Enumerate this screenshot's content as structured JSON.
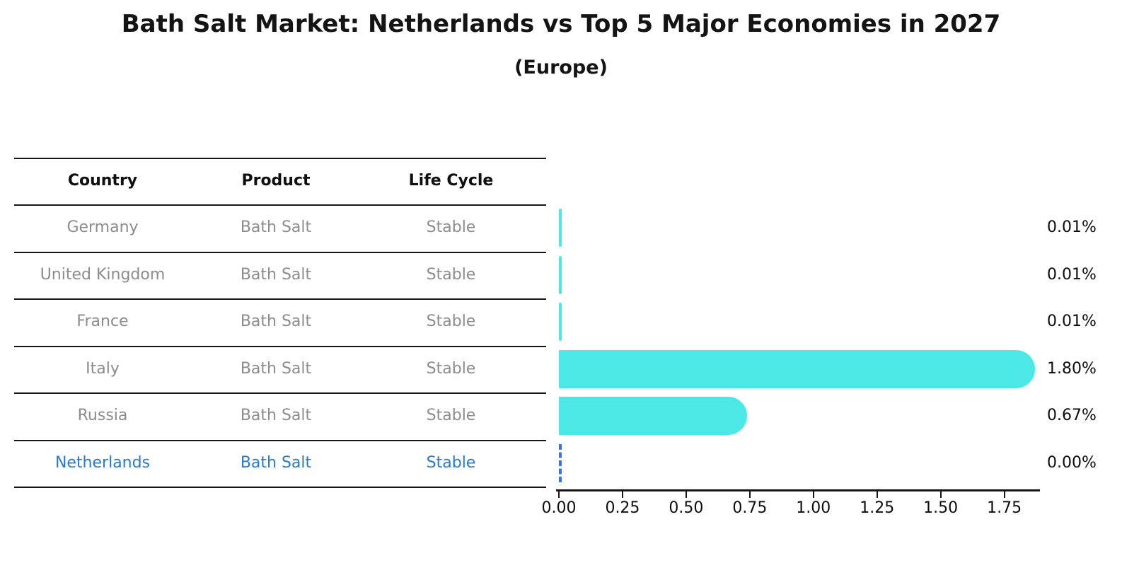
{
  "title": "Bath Salt Market: Netherlands vs Top 5 Major Economies in 2027",
  "subtitle": "(Europe)",
  "colors": {
    "bar": "#4BE8E6",
    "highlight_bar": "#3B74D9",
    "highlight_text": "#2979CE",
    "row_text": "#8c8c8c",
    "header_text": "#0f0f0f",
    "axis": "#161616"
  },
  "table": {
    "headers": [
      "Country",
      "Product",
      "Life Cycle"
    ],
    "rows": [
      {
        "country": "Germany",
        "product": "Bath Salt",
        "life_cycle": "Stable",
        "highlight": false
      },
      {
        "country": "United Kingdom",
        "product": "Bath Salt",
        "life_cycle": "Stable",
        "highlight": false
      },
      {
        "country": "France",
        "product": "Bath Salt",
        "life_cycle": "Stable",
        "highlight": false
      },
      {
        "country": "Italy",
        "product": "Bath Salt",
        "life_cycle": "Stable",
        "highlight": false
      },
      {
        "country": "Russia",
        "product": "Bath Salt",
        "life_cycle": "Stable",
        "highlight": false
      },
      {
        "country": "Netherlands",
        "product": "Bath Salt",
        "life_cycle": "Stable",
        "highlight": true
      }
    ]
  },
  "chart_data": {
    "type": "bar",
    "orientation": "horizontal",
    "title": "Bath Salt Market: Netherlands vs Top 5 Major Economies in 2027",
    "subtitle": "(Europe)",
    "categories": [
      "Germany",
      "United Kingdom",
      "France",
      "Italy",
      "Russia",
      "Netherlands"
    ],
    "values": [
      0.01,
      0.01,
      0.01,
      1.8,
      0.67,
      0.0
    ],
    "value_labels": [
      "0.01%",
      "0.01%",
      "0.01%",
      "1.80%",
      "0.67%",
      "0.00%"
    ],
    "xlabel": "",
    "ylabel": "",
    "xlim": [
      0,
      1.89
    ],
    "x_ticks": [
      "0.00",
      "0.25",
      "0.50",
      "0.75",
      "1.00",
      "1.25",
      "1.50",
      "1.75"
    ],
    "x_tick_values": [
      0,
      0.25,
      0.5,
      0.75,
      1.0,
      1.25,
      1.5,
      1.75
    ],
    "grid": false,
    "legend": false,
    "highlight_index": 5,
    "bar_color": "#4BE8E6",
    "highlight_style": "dashed-blue-outline"
  }
}
